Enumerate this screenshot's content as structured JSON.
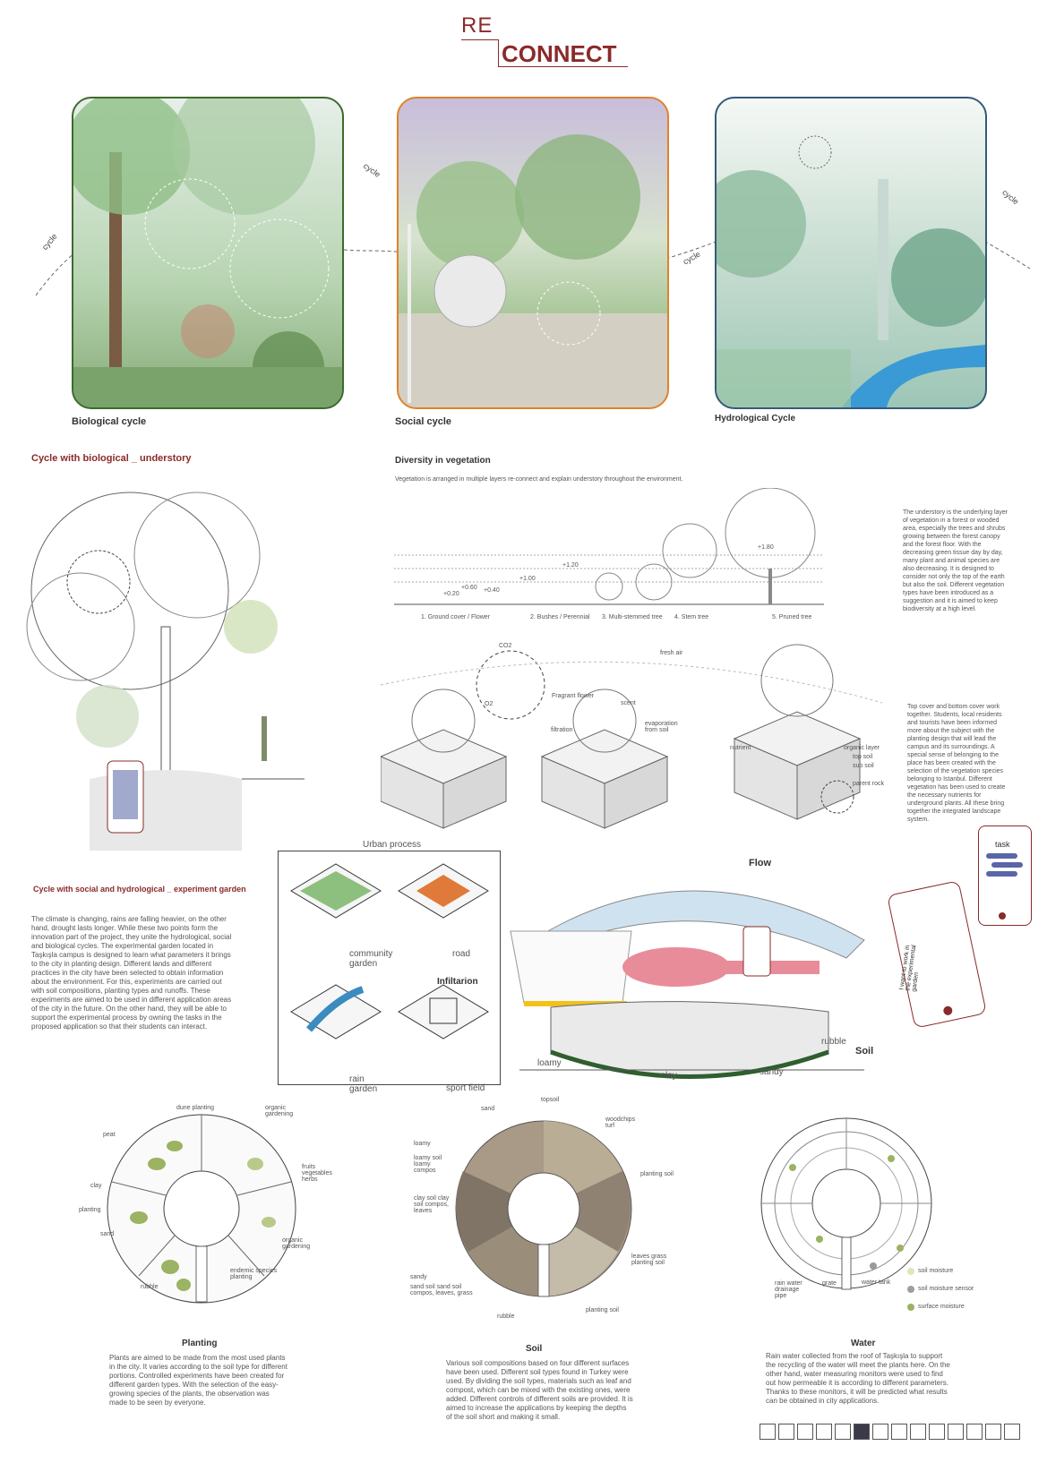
{
  "title": {
    "re": "RE",
    "connect": "CONNECT"
  },
  "cycle_word": "cycle",
  "panels": [
    {
      "caption": "Biological cycle",
      "border": "#3c6b2c"
    },
    {
      "caption": "Social cycle",
      "border": "#e0822b"
    },
    {
      "caption": "Hydrological Cycle",
      "border": "#355a7a"
    }
  ],
  "sections": {
    "bio_understory": "Cycle with biological _ understory",
    "diversity": "Diversity in vegetation",
    "diversity_desc": "Vegetation is arranged in multiple layers re-connect and explain understory throughout the environment.",
    "social_hydro": "Cycle with social and hydrological _ experiment garden"
  },
  "vegetation_layers": [
    "1. Ground cover / Flower",
    "2. Bushes / Perennial",
    "3. Multi-stemmed tree",
    "4. Stem tree",
    "5. Pruned tree"
  ],
  "height_marks": [
    "+0.20",
    "+0.40",
    "+0.60",
    "+1.00",
    "+1.20",
    "+1.80"
  ],
  "cycle_diagram": {
    "co2": "CO2",
    "o2": "O2",
    "fresh_air": "fresh air",
    "fragrant_flower": "Fragrant flower",
    "scent": "scent",
    "filtration": "filtration",
    "evaporation": "evaporation from soil",
    "nutrient": "nutrient",
    "organic_layer": "organic layer",
    "top_soil": "top soil",
    "sub_soil": "sub soil",
    "parent_rock": "parent rock"
  },
  "understory_text": "The understory is the underlying layer of vegetation in a forest or wooded area, especially the trees and shrubs growing between the forest canopy and the forest floor. With the decreasing green tissue day by day, many plant and animal species are also decreasing. It is designed to consider not only the top of the earth but also the soil. Different vegetation types have been introduced as a suggestion and it is aimed to keep biodiversity at a high level.",
  "topcover_text": "Top cover and bottom cover work together. Students, local residents and tourists have been informed more about the subject with the planting design that will lead the campus and its surroundings. A special sense of belonging to the place has been created with the selection of the vegetation species belonging to Istanbul. Different vegetation has been used to create the necessary nutrients for underground plants. All these bring together the integrated landscape system.",
  "climate_text": "The climate is changing, rains are falling heavier, on the other hand, drought lasts longer. While these two points form the innovation part of the project, they unite the hydrological, social and biological cycles. The experimental garden located in Taşkışla campus is designed to learn what parameters it brings to the city in planting design. Different lands and different practices in the city have been selected to obtain information about the environment. For this, experiments are carried out with soil compositions, planting types and runoffs. These experiments are aimed to be used in different application areas of the city in the future. On the other hand, they will be able to support the experimental process by owning the tasks in the proposed application so that their students can interact.",
  "urban": {
    "title": "Urban process",
    "community": "community garden",
    "road": "road",
    "infiltration": "Infiltarion",
    "rain": "rain garden",
    "sport": "sport field"
  },
  "flow": {
    "flow": "Flow",
    "soil": "Soil",
    "loamy": "loamy",
    "clay": "clay",
    "sandy": "sandy",
    "rubble": "rubble"
  },
  "phone": {
    "task": "task",
    "msg": "I want to work in the experimental garden"
  },
  "planting_wheel": {
    "labels": [
      "dune planting",
      "organic gardening",
      "fruits vegetables herbs",
      "peat",
      "clay",
      "planting",
      "sand",
      "organic gardening",
      "endemic species planting",
      "rubble"
    ]
  },
  "soil_wheel": {
    "labels": [
      "sand",
      "topsoil",
      "woodchips turf",
      "loamy",
      "loamy soil loamy compos",
      "planting soil",
      "clay soil clay soil compos, leaves",
      "leaves grass planting soil",
      "sandy",
      "sand soil sand soil compos, leaves, grass",
      "rubble",
      "planting soil"
    ]
  },
  "water_wheel": {
    "labels": [
      "rain water drainage pipe",
      "grate",
      "water tank",
      "soil moisture",
      "soil moisture sensor",
      "surface moisture"
    ]
  },
  "planting": {
    "title": "Planting",
    "text": "Plants are aimed to be made from the most used plants in the city. It varies according to the soil type for different portions. Controlled experiments have been created for different garden types. With the selection of the easy-growing species of the plants, the observation was made to be seen by everyone."
  },
  "soil": {
    "title": "Soil",
    "text": "Various soil compositions based on four different surfaces have been used. Different soil types found in Turkey were used. By dividing the soil types, materials such as leaf and compost, which can be mixed with the existing ones, were added. Different controls of different soils are provided. It is aimed to increase the applications by keeping the depths of the soil short and making it small."
  },
  "water": {
    "title": "Water",
    "text": "Rain water collected from the roof of Taşkışla to support the recycling of the water will meet the plants here. On the other hand, water measuring monitors were used to find out how permeable it is according to different parameters. Thanks to these monitors, it will be predicted what results can be obtained in city applications."
  },
  "pager": {
    "total": 14,
    "active": 6
  },
  "colors": {
    "accent": "#8a2a2a",
    "green": "#9bb362",
    "water": "#3a9ad6",
    "pink": "#e88c99"
  }
}
